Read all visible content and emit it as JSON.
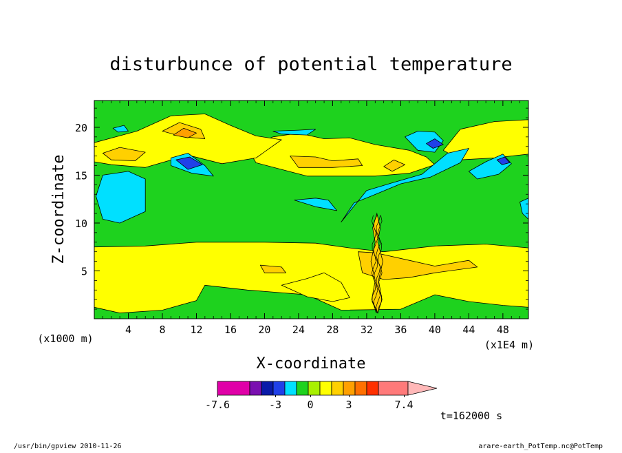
{
  "chart_data": {
    "type": "heatmap",
    "title": "disturbunce of potential temperature",
    "xlabel": "X-coordinate",
    "ylabel": "Z-coordinate",
    "x_unit_left": "(x1000 m)",
    "x_unit_right": "(x1E4 m)",
    "x_ticks": [
      4,
      8,
      12,
      16,
      20,
      24,
      28,
      32,
      36,
      40,
      44,
      48
    ],
    "y_ticks": [
      5,
      10,
      15,
      20
    ],
    "xlim": [
      0,
      51
    ],
    "ylim": [
      0,
      22.8
    ],
    "colorbar": {
      "labels": [
        "-7.6",
        "-3",
        "0",
        "3",
        "7.4"
      ],
      "colors": [
        "#e000a8",
        "#7a10b0",
        "#0a1aa8",
        "#2040e8",
        "#00e0ff",
        "#1ed21e",
        "#a8f000",
        "#ffff00",
        "#ffd000",
        "#ffa000",
        "#ff7000",
        "#ff3000",
        "#ff7a7a",
        "#ffb8b8"
      ]
    },
    "regions": [
      {
        "level": "positive-weak",
        "color": "#ffff00",
        "points": [
          [
            0,
            1.2
          ],
          [
            3,
            0.6
          ],
          [
            8,
            0.9
          ],
          [
            12,
            1.9
          ],
          [
            13,
            3.5
          ],
          [
            18,
            3.0
          ],
          [
            25,
            2.5
          ],
          [
            29,
            0.9
          ],
          [
            36,
            1.0
          ],
          [
            40,
            2.5
          ],
          [
            44,
            1.8
          ],
          [
            48,
            1.4
          ],
          [
            51,
            1.2
          ],
          [
            51,
            7.4
          ],
          [
            46,
            7.8
          ],
          [
            40,
            7.6
          ],
          [
            34,
            7.0
          ],
          [
            30,
            7.4
          ],
          [
            26,
            7.9
          ],
          [
            20,
            8.0
          ],
          [
            12,
            8.0
          ],
          [
            6,
            7.6
          ],
          [
            0,
            7.5
          ]
        ]
      },
      {
        "level": "positive-weak",
        "color": "#ffff00",
        "points": [
          [
            18,
            17.8
          ],
          [
            21,
            19.0
          ],
          [
            24,
            19.4
          ],
          [
            27,
            18.8
          ],
          [
            30,
            18.9
          ],
          [
            33,
            18.2
          ],
          [
            37,
            17.6
          ],
          [
            39,
            16.9
          ],
          [
            40,
            16.1
          ],
          [
            37,
            15.2
          ],
          [
            33,
            14.9
          ],
          [
            29,
            14.9
          ],
          [
            25,
            14.9
          ],
          [
            22,
            15.6
          ],
          [
            19,
            16.3
          ]
        ]
      },
      {
        "level": "positive-weak",
        "color": "#ffff00",
        "points": [
          [
            0,
            18.4
          ],
          [
            5,
            19.6
          ],
          [
            9,
            21.2
          ],
          [
            13,
            21.4
          ],
          [
            16,
            20.2
          ],
          [
            19,
            19.1
          ],
          [
            22,
            18.7
          ],
          [
            19,
            16.8
          ],
          [
            15,
            16.2
          ],
          [
            11,
            17.1
          ],
          [
            6,
            15.8
          ],
          [
            2,
            16.1
          ],
          [
            0,
            16.4
          ]
        ]
      },
      {
        "level": "positive-weak",
        "color": "#ffff00",
        "points": [
          [
            41,
            17.6
          ],
          [
            43,
            19.8
          ],
          [
            47,
            20.6
          ],
          [
            51,
            20.8
          ],
          [
            51,
            17.2
          ],
          [
            47,
            16.8
          ],
          [
            43,
            16.6
          ]
        ]
      },
      {
        "level": "positive-weak",
        "color": "#ffff00",
        "points": [
          [
            22,
            3.5
          ],
          [
            25,
            4.2
          ],
          [
            27,
            4.8
          ],
          [
            29,
            3.8
          ],
          [
            30,
            2.2
          ],
          [
            28,
            1.8
          ],
          [
            25,
            2.3
          ]
        ]
      },
      {
        "level": "positive-mid",
        "color": "#ffd000",
        "points": [
          [
            1,
            17.3
          ],
          [
            3,
            17.9
          ],
          [
            6,
            17.4
          ],
          [
            4.8,
            16.5
          ],
          [
            2,
            16.6
          ]
        ]
      },
      {
        "level": "positive-mid",
        "color": "#ffd000",
        "points": [
          [
            8,
            19.6
          ],
          [
            10,
            20.5
          ],
          [
            12.5,
            19.8
          ],
          [
            13,
            18.8
          ],
          [
            10.5,
            19.0
          ]
        ]
      },
      {
        "level": "positive-mid",
        "color": "#ffd000",
        "points": [
          [
            23,
            17.0
          ],
          [
            26,
            16.9
          ],
          [
            28,
            16.5
          ],
          [
            31,
            16.7
          ],
          [
            31.5,
            16.0
          ],
          [
            28,
            15.8
          ],
          [
            24,
            15.8
          ]
        ]
      },
      {
        "level": "positive-mid",
        "color": "#ffd000",
        "points": [
          [
            34,
            15.9
          ],
          [
            35.2,
            16.6
          ],
          [
            36.5,
            16.1
          ],
          [
            35,
            15.4
          ]
        ]
      },
      {
        "level": "positive-mid",
        "color": "#ffd000",
        "points": [
          [
            19.5,
            5.6
          ],
          [
            22,
            5.4
          ],
          [
            22.5,
            4.8
          ],
          [
            20,
            4.8
          ]
        ]
      },
      {
        "level": "positive-mid",
        "color": "#ffd000",
        "points": [
          [
            31,
            7.0
          ],
          [
            33,
            6.9
          ],
          [
            37,
            6.1
          ],
          [
            40,
            5.5
          ],
          [
            44,
            6.1
          ],
          [
            45,
            5.4
          ],
          [
            40,
            4.8
          ],
          [
            37,
            4.3
          ],
          [
            34,
            4.1
          ],
          [
            31.5,
            4.8
          ]
        ]
      },
      {
        "level": "positive-strong",
        "color": "#ffa000",
        "points": [
          [
            9.3,
            19.2
          ],
          [
            10.5,
            19.9
          ],
          [
            12,
            19.4
          ],
          [
            11,
            18.9
          ]
        ]
      },
      {
        "level": "negative-weak",
        "color": "#00e0ff",
        "points": [
          [
            1,
            15.0
          ],
          [
            4,
            15.4
          ],
          [
            6,
            14.6
          ],
          [
            6,
            11.2
          ],
          [
            3,
            10.0
          ],
          [
            1,
            10.4
          ],
          [
            0.2,
            12.8
          ]
        ]
      },
      {
        "level": "negative-weak",
        "color": "#00e0ff",
        "points": [
          [
            9,
            16.8
          ],
          [
            11,
            17.3
          ],
          [
            13,
            16.0
          ],
          [
            14,
            14.9
          ],
          [
            11.5,
            15.2
          ],
          [
            9,
            16.0
          ]
        ]
      },
      {
        "level": "negative-weak",
        "color": "#00e0ff",
        "points": [
          [
            32.5,
            12.8
          ],
          [
            36,
            14.1
          ],
          [
            39.5,
            14.8
          ],
          [
            43,
            16.3
          ],
          [
            44,
            17.8
          ],
          [
            41.5,
            17.3
          ],
          [
            38.5,
            15.1
          ],
          [
            35,
            14.2
          ],
          [
            32,
            13.4
          ],
          [
            29,
            10.1
          ],
          [
            30.5,
            12.1
          ]
        ]
      },
      {
        "level": "negative-weak",
        "color": "#00e0ff",
        "points": [
          [
            36.5,
            19.0
          ],
          [
            38,
            19.6
          ],
          [
            40,
            19.5
          ],
          [
            41,
            18.6
          ],
          [
            40,
            17.4
          ],
          [
            38,
            17.6
          ]
        ]
      },
      {
        "level": "negative-weak",
        "color": "#00e0ff",
        "points": [
          [
            44,
            15.4
          ],
          [
            46,
            16.4
          ],
          [
            48,
            17.2
          ],
          [
            49,
            16.2
          ],
          [
            47.5,
            15.1
          ],
          [
            45,
            14.6
          ]
        ]
      },
      {
        "level": "negative-weak",
        "color": "#00e0ff",
        "points": [
          [
            21,
            19.6
          ],
          [
            24,
            19.7
          ],
          [
            26,
            19.8
          ],
          [
            25,
            19.2
          ],
          [
            22,
            19.3
          ]
        ]
      },
      {
        "level": "negative-weak",
        "color": "#00e0ff",
        "points": [
          [
            23.5,
            12.4
          ],
          [
            26,
            12.6
          ],
          [
            27.5,
            12.4
          ],
          [
            28.5,
            11.3
          ],
          [
            26,
            11.7
          ]
        ]
      },
      {
        "level": "negative-weak",
        "color": "#00e0ff",
        "points": [
          [
            2.2,
            19.9
          ],
          [
            3.5,
            20.2
          ],
          [
            4,
            19.6
          ],
          [
            2.8,
            19.5
          ]
        ]
      },
      {
        "level": "negative-weak",
        "color": "#00e0ff",
        "points": [
          [
            50,
            12.2
          ],
          [
            51,
            12.6
          ],
          [
            51,
            10.4
          ],
          [
            50.3,
            11.0
          ]
        ]
      },
      {
        "level": "negative-mid",
        "color": "#2040e8",
        "points": [
          [
            9.6,
            16.6
          ],
          [
            11.2,
            16.9
          ],
          [
            12.7,
            16.1
          ],
          [
            11,
            15.6
          ]
        ]
      },
      {
        "level": "negative-mid",
        "color": "#2040e8",
        "points": [
          [
            39,
            18.3
          ],
          [
            40,
            18.8
          ],
          [
            41,
            18.2
          ],
          [
            39.8,
            17.8
          ]
        ]
      },
      {
        "level": "negative-mid",
        "color": "#2040e8",
        "points": [
          [
            47.3,
            16.6
          ],
          [
            48.2,
            16.9
          ],
          [
            48.8,
            16.3
          ],
          [
            47.9,
            16.1
          ]
        ]
      }
    ]
  }
}
